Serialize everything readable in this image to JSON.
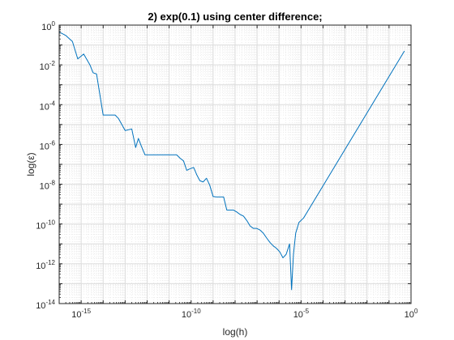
{
  "chart_data": {
    "type": "line",
    "title": "2) exp(0.1) using center difference;",
    "xlabel": "log(h)",
    "ylabel": "log(ε)",
    "xscale": "log",
    "yscale": "log",
    "xlim": [
      1e-16,
      1
    ],
    "ylim": [
      1e-14,
      1
    ],
    "grid": true,
    "minor_grid": true,
    "x_tick_labels": [
      {
        "value": 1e-15,
        "base": "10",
        "exp": "-15"
      },
      {
        "value": 1e-10,
        "base": "10",
        "exp": "-10"
      },
      {
        "value": 1e-05,
        "base": "10",
        "exp": "-5"
      },
      {
        "value": 1,
        "base": "10",
        "exp": "0"
      }
    ],
    "y_tick_labels": [
      {
        "value": 1,
        "base": "10",
        "exp": "0"
      },
      {
        "value": 0.01,
        "base": "10",
        "exp": "-2"
      },
      {
        "value": 0.0001,
        "base": "10",
        "exp": "-4"
      },
      {
        "value": 1e-06,
        "base": "10",
        "exp": "-6"
      },
      {
        "value": 1e-08,
        "base": "10",
        "exp": "-8"
      },
      {
        "value": 1e-10,
        "base": "10",
        "exp": "-10"
      },
      {
        "value": 1e-12,
        "base": "10",
        "exp": "-12"
      },
      {
        "value": 1e-14,
        "base": "10",
        "exp": "-14"
      }
    ],
    "line_color": "#0072bd",
    "series": [
      {
        "x": [
          1e-16,
          2e-16,
          4e-16,
          7e-16,
          1.3e-15,
          2.5e-15,
          3.5e-15,
          5e-15,
          1e-14,
          2e-14,
          3.5e-14,
          5e-14,
          1e-13,
          2e-13,
          3e-13,
          4e-13,
          5.5e-13,
          8e-13,
          1.1e-12,
          1.6e-12,
          2.5e-12,
          5e-12,
          1e-11,
          2.2e-11,
          3.2e-11,
          4.5e-11,
          6.3e-11,
          9e-11,
          1.3e-10,
          1.8e-10,
          2.5e-10,
          3.5e-10,
          5e-10,
          7e-10,
          1e-09,
          1.4e-09,
          2e-09,
          3e-09,
          4.2e-09,
          6e-09,
          8.5e-09,
          1.2e-08,
          1.7e-08,
          2.4e-08,
          3.4e-08,
          4.8e-08,
          6.8e-08,
          9.6e-08,
          1.35e-07,
          1.9e-07,
          2.7e-07,
          3.8e-07,
          5.4e-07,
          7.6e-07,
          1.07e-06,
          1.5e-06,
          2.1e-06,
          3e-06,
          3.7e-06,
          4.5e-06,
          5.7e-06,
          8e-06,
          1.3e-05,
          0.5
        ],
        "y": [
          0.45,
          0.3,
          0.15,
          0.02,
          0.035,
          0.01,
          0.004,
          0.0035,
          3e-05,
          3e-05,
          3e-05,
          2e-05,
          5e-06,
          6e-06,
          7e-07,
          2e-06,
          8e-07,
          3e-07,
          3e-07,
          3e-07,
          3e-07,
          3e-07,
          3e-07,
          3e-07,
          2e-07,
          1.5e-07,
          5e-08,
          6e-08,
          7e-08,
          3e-08,
          1.5e-08,
          1.3e-08,
          2e-08,
          9e-09,
          2.4e-09,
          2.3e-09,
          2.3e-09,
          2.3e-09,
          5e-10,
          5e-10,
          5e-10,
          4e-10,
          3e-10,
          2.5e-10,
          1.5e-10,
          8e-11,
          6e-11,
          6e-11,
          5e-11,
          3.5e-11,
          2e-11,
          1.2e-11,
          8e-12,
          6e-12,
          4e-12,
          2e-12,
          3e-12,
          1e-11,
          5e-14,
          3e-12,
          3.5e-11,
          1.2e-10,
          2e-10,
          0.05
        ]
      }
    ]
  }
}
